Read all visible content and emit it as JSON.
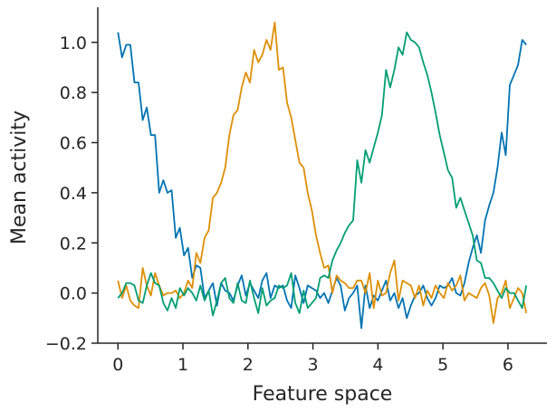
{
  "chart_data": {
    "type": "line",
    "title": "",
    "xlabel": "Feature space",
    "ylabel": "Mean activity",
    "xlim": [
      -0.31,
      6.6
    ],
    "ylim": [
      -0.2,
      1.14
    ],
    "xticks": [
      0,
      1,
      2,
      3,
      4,
      5,
      6
    ],
    "yticks": [
      -0.2,
      0.0,
      0.2,
      0.4,
      0.6,
      0.8,
      1.0
    ],
    "xtick_labels": [
      "0",
      "1",
      "2",
      "3",
      "4",
      "5",
      "6"
    ],
    "ytick_labels": [
      "−0.2",
      "0.0",
      "0.2",
      "0.4",
      "0.6",
      "0.8",
      "1.0"
    ],
    "grid": false,
    "legend": "none",
    "x": [
      0.0,
      0.063,
      0.127,
      0.19,
      0.254,
      0.317,
      0.381,
      0.444,
      0.508,
      0.571,
      0.635,
      0.698,
      0.762,
      0.825,
      0.889,
      0.952,
      1.016,
      1.079,
      1.143,
      1.206,
      1.269,
      1.333,
      1.396,
      1.46,
      1.523,
      1.587,
      1.65,
      1.714,
      1.777,
      1.841,
      1.904,
      1.968,
      2.031,
      2.095,
      2.158,
      2.221,
      2.285,
      2.348,
      2.412,
      2.475,
      2.539,
      2.602,
      2.666,
      2.729,
      2.793,
      2.856,
      2.92,
      2.983,
      3.047,
      3.11,
      3.173,
      3.237,
      3.3,
      3.364,
      3.427,
      3.491,
      3.554,
      3.618,
      3.681,
      3.745,
      3.808,
      3.872,
      3.935,
      3.999,
      4.062,
      4.125,
      4.189,
      4.252,
      4.316,
      4.379,
      4.443,
      4.506,
      4.57,
      4.633,
      4.697,
      4.76,
      4.824,
      4.887,
      4.951,
      5.014,
      5.077,
      5.141,
      5.204,
      5.268,
      5.331,
      5.395,
      5.458,
      5.522,
      5.585,
      5.649,
      5.712,
      5.776,
      5.839,
      5.903,
      5.966,
      6.029,
      6.093,
      6.156,
      6.22,
      6.283
    ],
    "series": [
      {
        "color": "#0173b2",
        "values": [
          1.04,
          0.94,
          0.99,
          0.99,
          0.84,
          0.84,
          0.69,
          0.74,
          0.63,
          0.63,
          0.4,
          0.45,
          0.4,
          0.41,
          0.22,
          0.26,
          0.15,
          0.18,
          0.06,
          0.11,
          0.1,
          -0.02,
          0.01,
          0.04,
          -0.05,
          0.04,
          0.01,
          0.0,
          -0.03,
          0.03,
          0.07,
          -0.01,
          0.04,
          0.01,
          -0.02,
          0.05,
          0.08,
          -0.02,
          0.03,
          0.02,
          0.03,
          -0.03,
          -0.06,
          0.07,
          0.02,
          -0.04,
          0.03,
          0.02,
          0.01,
          -0.02,
          0.0,
          -0.04,
          0.01,
          0.06,
          0.03,
          -0.07,
          -0.02,
          0.0,
          0.03,
          -0.14,
          0.03,
          -0.06,
          -0.01,
          -0.03,
          0.01,
          0.05,
          -0.03,
          0.0,
          -0.06,
          -0.02,
          -0.1,
          -0.05,
          -0.01,
          0.0,
          0.03,
          -0.02,
          -0.05,
          -0.02,
          0.03,
          0.02,
          0.03,
          0.06,
          0.0,
          -0.01,
          0.04,
          0.12,
          0.18,
          0.23,
          0.16,
          0.29,
          0.35,
          0.4,
          0.5,
          0.64,
          0.55,
          0.83,
          0.87,
          0.91,
          1.01,
          0.99
        ]
      },
      {
        "color": "#de8f05",
        "values": [
          0.05,
          -0.02,
          0.03,
          -0.03,
          -0.05,
          -0.06,
          0.1,
          0.03,
          -0.01,
          0.08,
          0.03,
          -0.01,
          0.0,
          0.0,
          0.01,
          -0.02,
          0.0,
          0.05,
          0.02,
          0.16,
          0.12,
          0.22,
          0.25,
          0.38,
          0.4,
          0.44,
          0.5,
          0.63,
          0.71,
          0.73,
          0.82,
          0.88,
          0.84,
          0.97,
          0.92,
          0.95,
          1.01,
          0.97,
          1.08,
          0.89,
          0.9,
          0.76,
          0.7,
          0.61,
          0.52,
          0.5,
          0.4,
          0.33,
          0.23,
          0.16,
          0.1,
          0.11,
          0.0,
          0.07,
          0.05,
          0.04,
          0.02,
          0.02,
          0.05,
          0.05,
          0.0,
          0.08,
          -0.06,
          0.05,
          -0.01,
          0.0,
          0.08,
          0.13,
          -0.03,
          0.05,
          0.04,
          0.03,
          -0.02,
          0.03,
          -0.05,
          0.01,
          -0.02,
          0.03,
          0.0,
          -0.02,
          0.04,
          0.01,
          0.03,
          0.07,
          -0.03,
          0.0,
          -0.01,
          -0.02,
          0.02,
          0.04,
          -0.01,
          -0.12,
          -0.02,
          0.0,
          0.05,
          -0.06,
          -0.02,
          0.02,
          0.0,
          -0.08
        ]
      },
      {
        "color": "#029e73",
        "values": [
          -0.02,
          0.0,
          0.04,
          0.04,
          0.03,
          -0.03,
          -0.04,
          0.03,
          0.08,
          0.04,
          0.03,
          -0.04,
          -0.07,
          -0.02,
          -0.06,
          0.02,
          -0.01,
          0.02,
          0.0,
          -0.03,
          0.03,
          -0.03,
          0.01,
          -0.09,
          -0.03,
          0.04,
          0.06,
          -0.02,
          -0.04,
          0.04,
          -0.03,
          -0.04,
          0.05,
          -0.02,
          -0.08,
          0.02,
          -0.05,
          -0.03,
          -0.02,
          0.03,
          0.02,
          0.03,
          0.08,
          -0.04,
          -0.08,
          0.01,
          -0.06,
          -0.04,
          -0.02,
          0.06,
          0.07,
          0.06,
          0.13,
          0.17,
          0.2,
          0.24,
          0.27,
          0.29,
          0.53,
          0.44,
          0.57,
          0.52,
          0.58,
          0.64,
          0.71,
          0.89,
          0.82,
          0.89,
          0.98,
          0.95,
          1.04,
          1.01,
          1.0,
          0.98,
          0.92,
          0.87,
          0.8,
          0.72,
          0.63,
          0.56,
          0.49,
          0.46,
          0.34,
          0.38,
          0.33,
          0.28,
          0.23,
          0.13,
          0.12,
          0.06,
          0.06,
          0.04,
          0.01,
          -0.02,
          0.02,
          0.0,
          0.0,
          -0.03,
          -0.06,
          0.03
        ]
      }
    ]
  }
}
